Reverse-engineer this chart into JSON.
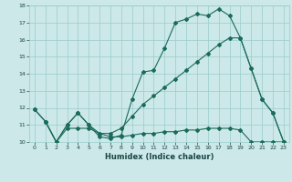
{
  "xlabel": "Humidex (Indice chaleur)",
  "background_color": "#cce8e8",
  "grid_color": "#99cccc",
  "line_color": "#1a6b5a",
  "xlim": [
    -0.5,
    23.5
  ],
  "ylim": [
    10,
    18
  ],
  "xticks": [
    0,
    1,
    2,
    3,
    4,
    5,
    6,
    7,
    8,
    9,
    10,
    11,
    12,
    13,
    14,
    15,
    16,
    17,
    18,
    19,
    20,
    21,
    22,
    23
  ],
  "yticks": [
    10,
    11,
    12,
    13,
    14,
    15,
    16,
    17,
    18
  ],
  "line1_x": [
    0,
    1,
    2,
    3,
    4,
    5,
    6,
    7,
    8,
    9,
    10,
    11,
    12,
    13,
    14,
    15,
    16,
    17,
    18,
    19,
    20,
    21,
    22,
    23
  ],
  "line1_y": [
    11.9,
    11.2,
    10.0,
    11.0,
    11.7,
    11.0,
    10.3,
    10.2,
    10.4,
    12.5,
    14.1,
    14.2,
    15.5,
    17.0,
    17.2,
    17.5,
    17.4,
    17.8,
    17.4,
    16.1,
    14.3,
    12.5,
    11.7,
    10.0
  ],
  "line2_x": [
    0,
    1,
    2,
    3,
    4,
    5,
    6,
    7,
    8,
    9,
    10,
    11,
    12,
    13,
    14,
    15,
    16,
    17,
    18,
    19,
    20,
    21,
    22,
    23
  ],
  "line2_y": [
    11.9,
    11.2,
    10.0,
    10.8,
    10.8,
    10.8,
    10.5,
    10.3,
    10.3,
    10.4,
    10.5,
    10.5,
    10.6,
    10.6,
    10.7,
    10.7,
    10.8,
    10.8,
    10.8,
    10.7,
    10.0,
    10.0,
    10.0,
    10.0
  ],
  "line3_x": [
    1,
    2,
    3,
    4,
    5,
    6,
    7,
    8,
    9,
    10,
    11,
    12,
    13,
    14,
    15,
    16,
    17,
    18,
    19,
    20,
    21,
    22,
    23
  ],
  "line3_y": [
    11.2,
    10.0,
    11.0,
    11.7,
    11.0,
    10.5,
    10.5,
    10.8,
    11.5,
    12.2,
    12.7,
    13.2,
    13.7,
    14.2,
    14.7,
    15.2,
    15.7,
    16.1,
    16.1,
    14.3,
    12.5,
    11.7,
    10.0
  ]
}
